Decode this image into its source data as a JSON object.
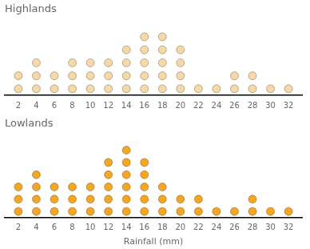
{
  "chart_data": [
    {
      "type": "dot",
      "title": "Highlands",
      "x": [
        2,
        4,
        6,
        8,
        10,
        12,
        14,
        16,
        18,
        20,
        22,
        24,
        26,
        28,
        30,
        32
      ],
      "values": [
        2,
        3,
        2,
        3,
        3,
        3,
        4,
        5,
        5,
        4,
        1,
        1,
        2,
        2,
        1,
        1
      ],
      "color": "#F7D9A8",
      "xlim": [
        0.5,
        33.5
      ],
      "xticks": [
        2,
        4,
        6,
        8,
        10,
        12,
        14,
        16,
        18,
        20,
        22,
        24,
        26,
        28,
        30,
        32
      ],
      "ylim": [
        0,
        6
      ],
      "grid": false,
      "legend": "none",
      "tick_labels": "x"
    },
    {
      "type": "dot",
      "title": "Lowlands",
      "x_label": "Rainfall (mm)",
      "x": [
        2,
        4,
        6,
        8,
        10,
        12,
        14,
        16,
        18,
        20,
        22,
        24,
        26,
        28,
        30,
        32
      ],
      "values": [
        3,
        4,
        3,
        3,
        3,
        5,
        6,
        5,
        3,
        2,
        2,
        1,
        1,
        2,
        1,
        1
      ],
      "color": "#F5A623",
      "xlim": [
        0.5,
        33.5
      ],
      "xticks": [
        2,
        4,
        6,
        8,
        10,
        12,
        14,
        16,
        18,
        20,
        22,
        24,
        26,
        28,
        30,
        32
      ],
      "ylim": [
        0,
        7
      ],
      "grid": false,
      "legend": "none",
      "tick_labels": "x"
    }
  ]
}
